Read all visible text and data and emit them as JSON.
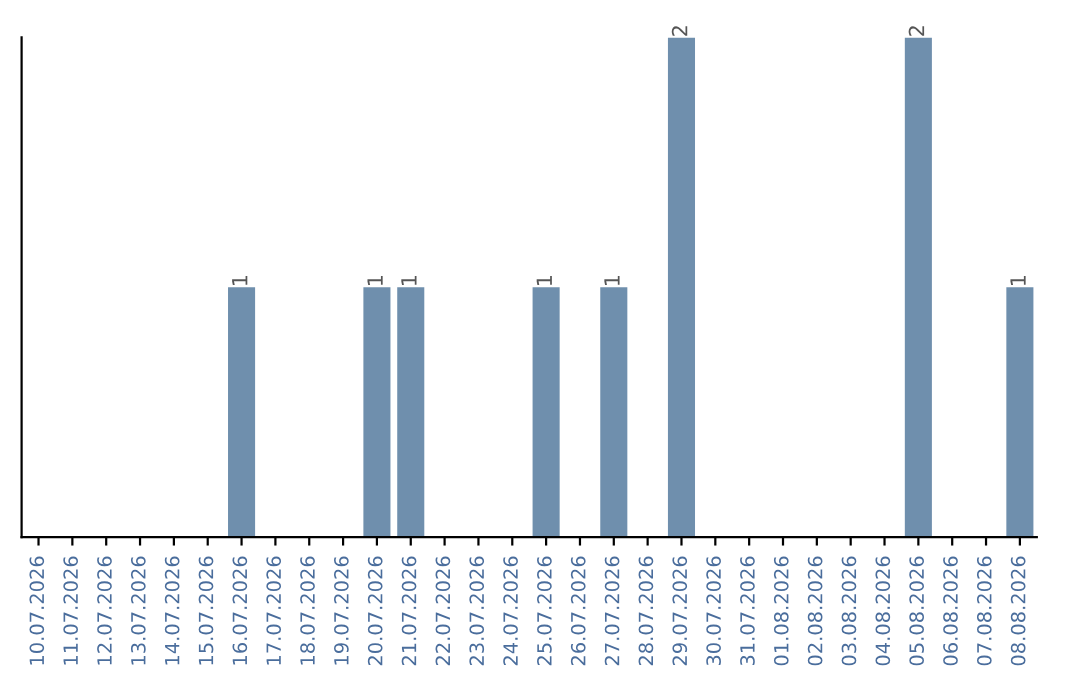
{
  "chart_data": {
    "type": "bar",
    "tick_labels": "x",
    "categories": [
      "10.07.2026",
      "11.07.2026",
      "12.07.2026",
      "13.07.2026",
      "14.07.2026",
      "15.07.2026",
      "16.07.2026",
      "17.07.2026",
      "18.07.2026",
      "19.07.2026",
      "20.07.2026",
      "21.07.2026",
      "22.07.2026",
      "23.07.2026",
      "24.07.2026",
      "25.07.2026",
      "26.07.2026",
      "27.07.2026",
      "28.07.2026",
      "29.07.2026",
      "30.07.2026",
      "31.07.2026",
      "01.08.2026",
      "02.08.2026",
      "03.08.2026",
      "04.08.2026",
      "05.08.2026",
      "06.08.2026",
      "07.08.2026",
      "08.08.2026"
    ],
    "values": [
      0,
      0,
      0,
      0,
      0,
      0,
      1,
      0,
      0,
      0,
      1,
      1,
      0,
      0,
      0,
      1,
      0,
      1,
      0,
      2,
      0,
      0,
      0,
      0,
      0,
      0,
      2,
      0,
      0,
      1
    ],
    "value_labels": [
      null,
      null,
      null,
      null,
      null,
      null,
      "1",
      null,
      null,
      null,
      "1",
      "1",
      null,
      null,
      null,
      "1",
      null,
      "1",
      null,
      "2",
      null,
      null,
      null,
      null,
      null,
      null,
      "2",
      null,
      null,
      "1"
    ],
    "color": "#6f8fad"
  }
}
